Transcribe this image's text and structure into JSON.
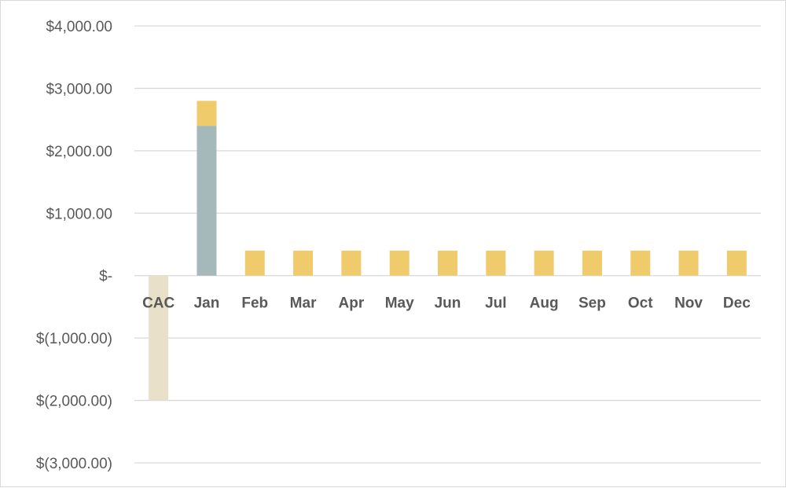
{
  "chart_data": {
    "type": "bar",
    "stacked": true,
    "categories": [
      "CAC",
      "Jan",
      "Feb",
      "Mar",
      "Apr",
      "May",
      "Jun",
      "Jul",
      "Aug",
      "Sep",
      "Oct",
      "Nov",
      "Dec"
    ],
    "series": [
      {
        "color": "#e8e0c8",
        "values": [
          -2000,
          0,
          0,
          0,
          0,
          0,
          0,
          0,
          0,
          0,
          0,
          0,
          0
        ]
      },
      {
        "color": "#a5b8ba",
        "values": [
          0,
          2400,
          0,
          0,
          0,
          0,
          0,
          0,
          0,
          0,
          0,
          0,
          0
        ]
      },
      {
        "color": "#f0cb6c",
        "values": [
          0,
          400,
          400,
          400,
          400,
          400,
          400,
          400,
          400,
          400,
          400,
          400,
          400
        ]
      }
    ],
    "y_ticks": [
      {
        "value": 4000,
        "label": "$4,000.00"
      },
      {
        "value": 3000,
        "label": "$3,000.00"
      },
      {
        "value": 2000,
        "label": "$2,000.00"
      },
      {
        "value": 1000,
        "label": "$1,000.00"
      },
      {
        "value": 0,
        "label": "$-"
      },
      {
        "value": -1000,
        "label": "$(1,000.00)"
      },
      {
        "value": -2000,
        "label": "$(2,000.00)"
      },
      {
        "value": -3000,
        "label": "$(3,000.00)"
      }
    ],
    "ylim": [
      -3000,
      4000
    ],
    "grid": true,
    "legend": "none",
    "gridline_color": "#d9d9d9"
  }
}
